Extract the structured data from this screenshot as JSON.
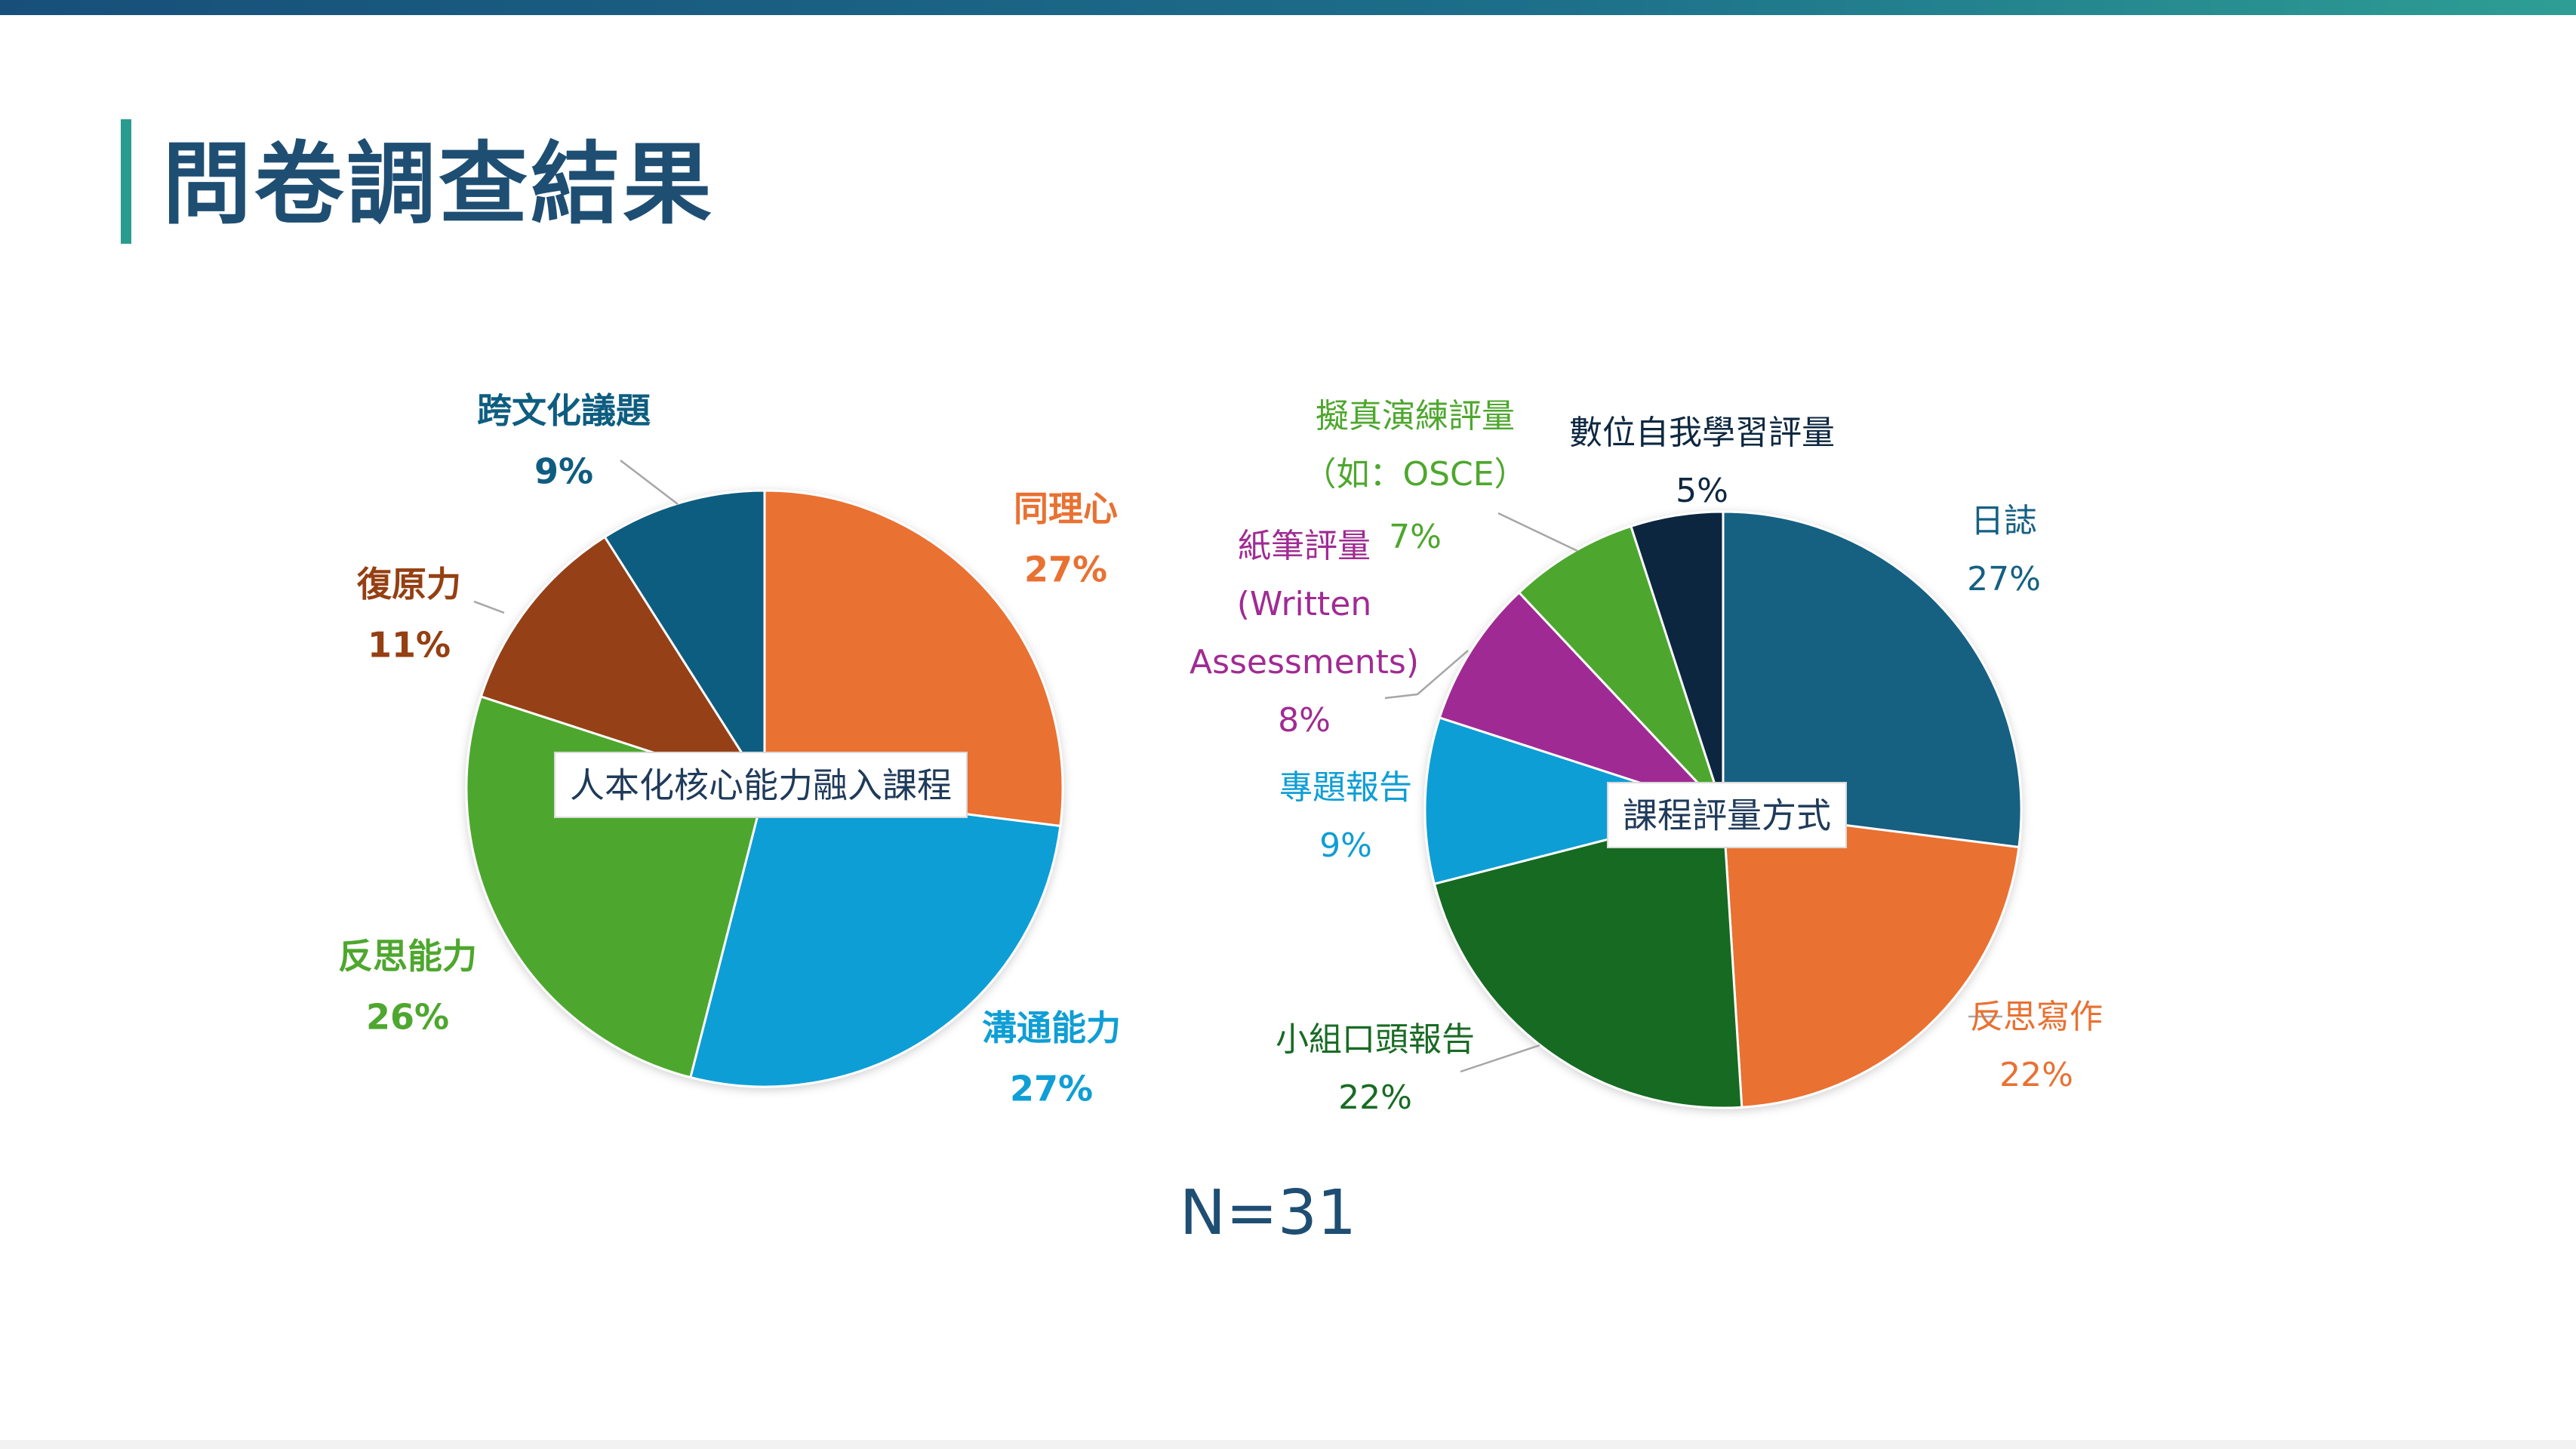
{
  "page": {
    "title": "問卷調查結果",
    "n_label": "N=31"
  },
  "chart_data": [
    {
      "type": "pie",
      "title": "人本化核心能力融入課程",
      "slices": [
        {
          "label": "同理心",
          "value": 27,
          "display": "27%",
          "color": "#e97132"
        },
        {
          "label": "溝通能力",
          "value": 27,
          "display": "27%",
          "color": "#0f9ed5"
        },
        {
          "label": "反思能力",
          "value": 26,
          "display": "26%",
          "color": "#4ea72e"
        },
        {
          "label": "復原力",
          "value": 11,
          "display": "11%",
          "color": "#953f12"
        },
        {
          "label": "跨文化議題",
          "value": 9,
          "display": "9%",
          "color": "#0e5d80"
        }
      ]
    },
    {
      "type": "pie",
      "title": "課程評量方式",
      "slices": [
        {
          "label": "日誌",
          "value": 27,
          "display": "27%",
          "color": "#156082"
        },
        {
          "label": "反思寫作",
          "value": 22,
          "display": "22%",
          "color": "#e97132"
        },
        {
          "label": "小組口頭報告",
          "value": 22,
          "display": "22%",
          "color": "#196b24"
        },
        {
          "label": "專題報告",
          "value": 9,
          "display": "9%",
          "color": "#0f9ed5"
        },
        {
          "label": "紙筆評量 (Written Assessments)",
          "value": 8,
          "display": "8%",
          "color": "#a02b93"
        },
        {
          "label": "擬真演練評量（如：OSCE）",
          "value": 7,
          "display": "7%",
          "color": "#4ea72e"
        },
        {
          "label": "數位自我學習評量",
          "value": 5,
          "display": "5%",
          "color": "#0e2841"
        }
      ]
    }
  ]
}
